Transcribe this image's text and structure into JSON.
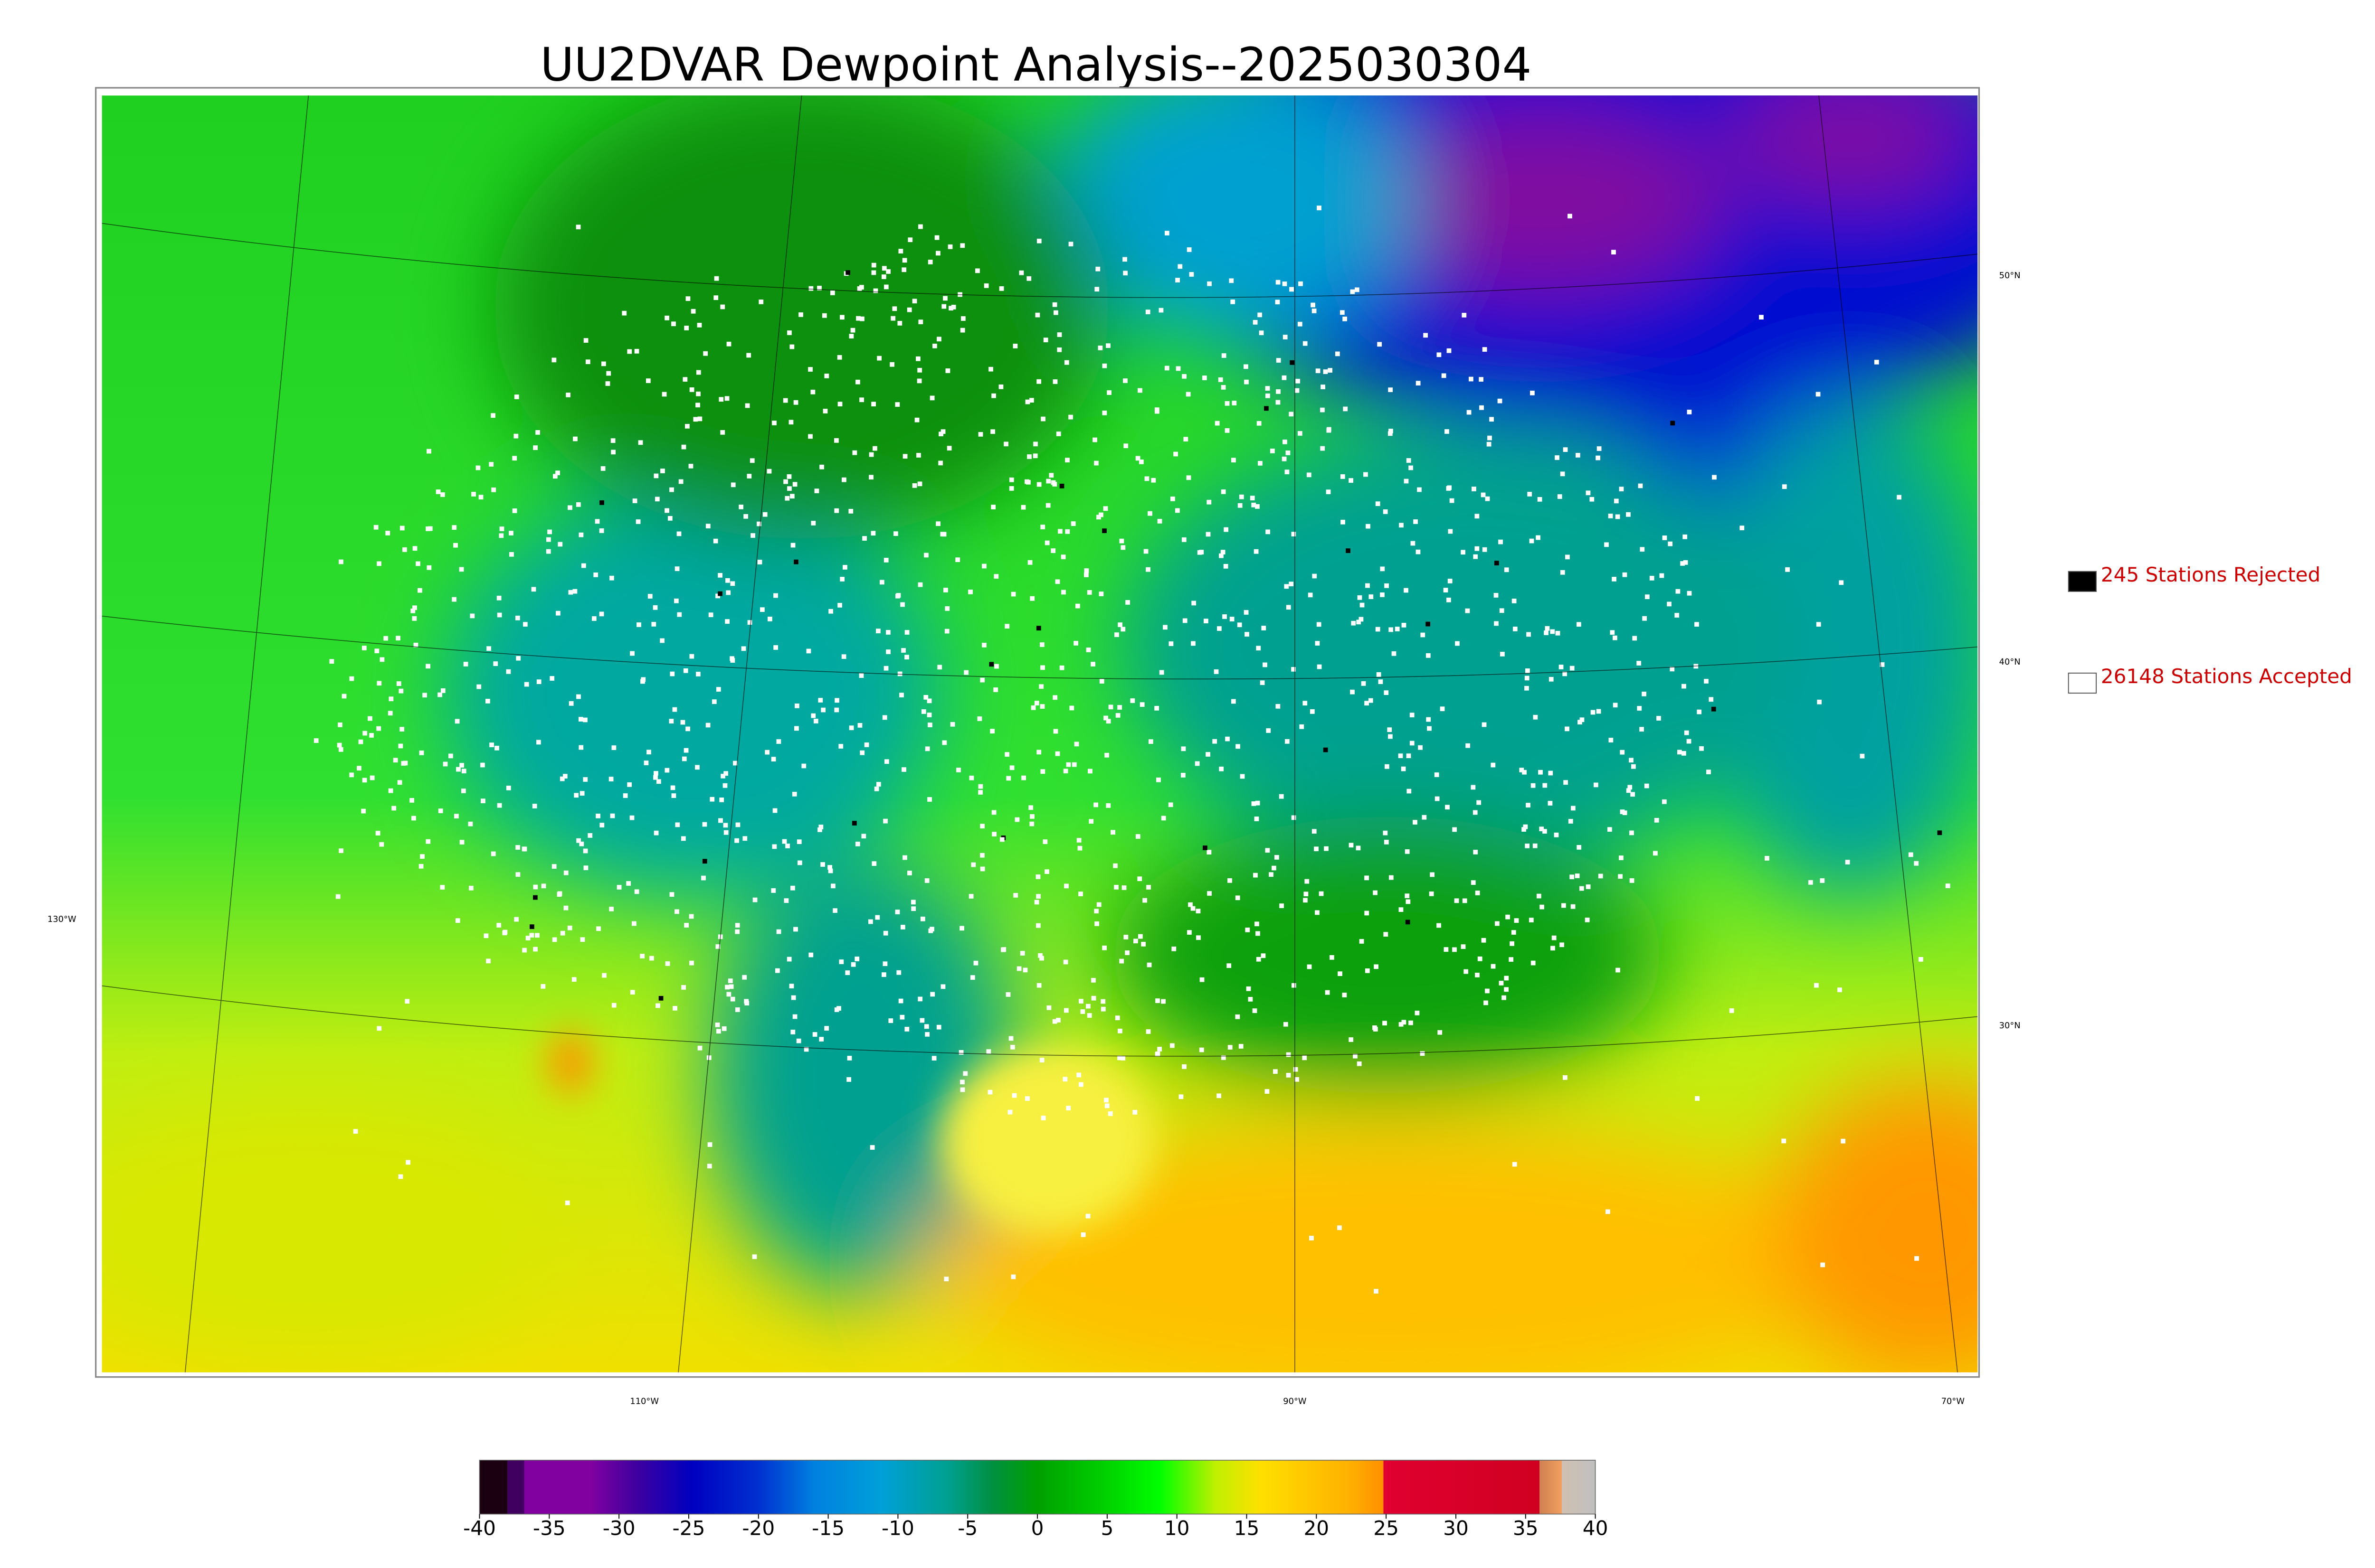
{
  "title": "UU2DVAR Dewpoint Analysis--2025030304",
  "legend": [
    {
      "label": "245 Stations Rejected",
      "color": "#000000"
    },
    {
      "label": "26148 Stations Accepted",
      "color": "#ffffff"
    }
  ],
  "colorbar": {
    "lim": [
      -40,
      40
    ],
    "ticks": [
      -40,
      -35,
      -30,
      -25,
      -20,
      -15,
      -10,
      -5,
      0,
      5,
      10,
      15,
      20,
      25,
      30,
      35,
      40
    ]
  },
  "graticule": {
    "latitudes": [
      "50°N",
      "40°N",
      "30°N"
    ],
    "longitudes": [
      "130°W",
      "110°W",
      "90°W",
      "70°W"
    ]
  }
}
